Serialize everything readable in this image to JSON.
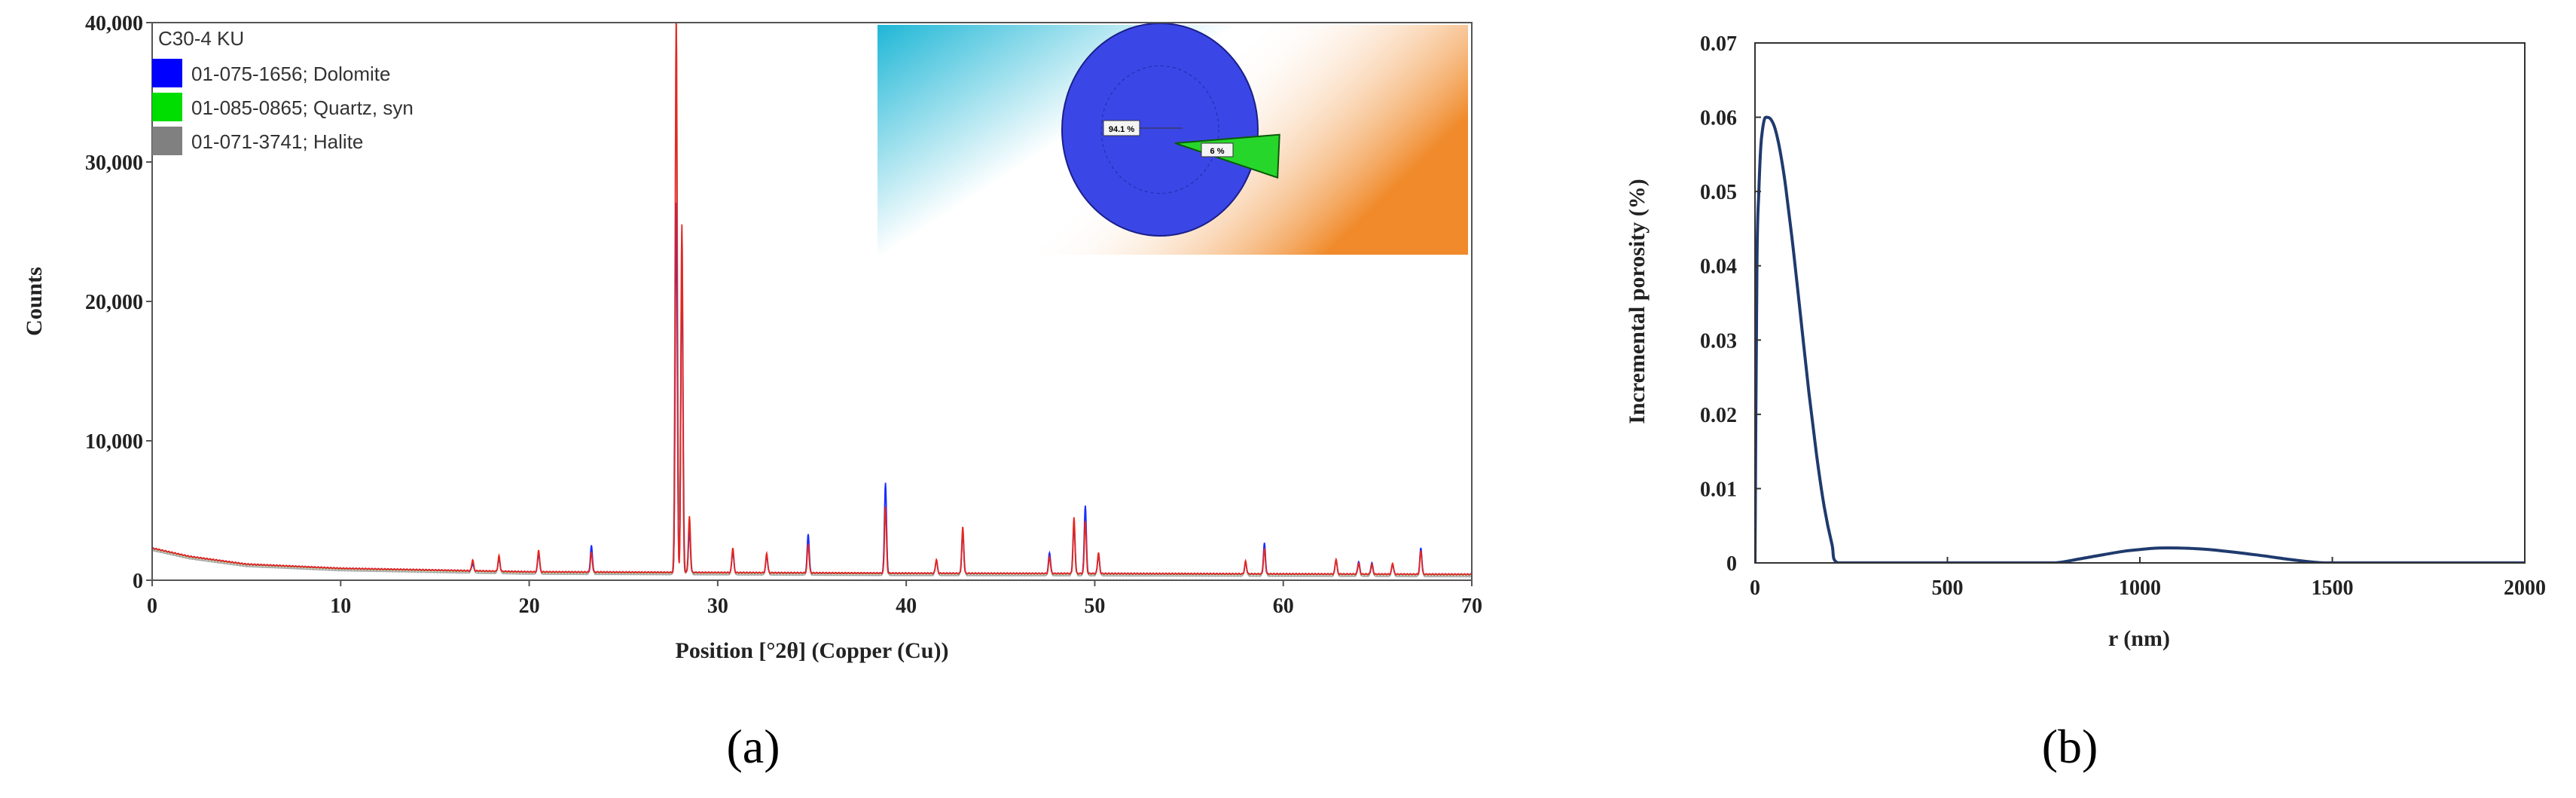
{
  "chart_data": [
    {
      "type": "line",
      "panel_label": "(a)",
      "title": "",
      "xlabel": "Position [°2θ] (Copper (Cu))",
      "ylabel": "Counts",
      "xlim": [
        0,
        70
      ],
      "ylim": [
        0,
        40000
      ],
      "xticks": [
        0,
        10,
        20,
        30,
        40,
        50,
        60,
        70
      ],
      "xtick_labels": [
        "0",
        "10",
        "20",
        "30",
        "40",
        "50",
        "60",
        "70"
      ],
      "yticks": [
        0,
        10000,
        20000,
        30000,
        40000
      ],
      "ytick_labels": [
        "0",
        "10,000",
        "20,000",
        "30,000",
        "40,000"
      ],
      "grid": false,
      "legend_title": "C30-4 KU",
      "legend": [
        {
          "name": "01-075-1656; Dolomite",
          "color": "#0000ff"
        },
        {
          "name": "01-085-0865; Quartz, syn",
          "color": "#00dd00"
        },
        {
          "name": "01-071-3741; Halite",
          "color": "#808080"
        }
      ],
      "background_level": [
        [
          0,
          2300
        ],
        [
          2,
          1700
        ],
        [
          5,
          1150
        ],
        [
          10,
          850
        ],
        [
          20,
          600
        ],
        [
          30,
          550
        ],
        [
          40,
          500
        ],
        [
          50,
          480
        ],
        [
          60,
          450
        ],
        [
          70,
          420
        ]
      ],
      "peaks": [
        {
          "pos": 17.0,
          "red": 800,
          "blue": 500
        },
        {
          "pos": 18.4,
          "red": 1100,
          "blue": 900
        },
        {
          "pos": 20.5,
          "red": 1600,
          "blue": 1300
        },
        {
          "pos": 23.3,
          "red": 1400,
          "blue": 1900
        },
        {
          "pos": 27.8,
          "red": 40000,
          "blue": 26500
        },
        {
          "pos": 28.1,
          "red": 25000,
          "blue": 22000
        },
        {
          "pos": 28.5,
          "red": 4000,
          "blue": 3000
        },
        {
          "pos": 30.8,
          "red": 1800,
          "blue": 1500
        },
        {
          "pos": 32.6,
          "red": 1400,
          "blue": 1200
        },
        {
          "pos": 34.8,
          "red": 2100,
          "blue": 2800
        },
        {
          "pos": 38.9,
          "red": 4800,
          "blue": 6500
        },
        {
          "pos": 41.6,
          "red": 1000,
          "blue": 900
        },
        {
          "pos": 43.0,
          "red": 3300,
          "blue": 2900
        },
        {
          "pos": 47.6,
          "red": 1200,
          "blue": 1500
        },
        {
          "pos": 48.9,
          "red": 4000,
          "blue": 3500
        },
        {
          "pos": 49.5,
          "red": 3800,
          "blue": 4900
        },
        {
          "pos": 50.2,
          "red": 1500,
          "blue": 1300
        },
        {
          "pos": 58.0,
          "red": 900,
          "blue": 800
        },
        {
          "pos": 59.0,
          "red": 1800,
          "blue": 2200
        },
        {
          "pos": 62.8,
          "red": 1100,
          "blue": 1000
        },
        {
          "pos": 64.0,
          "red": 800,
          "blue": 900
        },
        {
          "pos": 64.7,
          "red": 700,
          "blue": 800
        },
        {
          "pos": 65.8,
          "red": 800,
          "blue": 700
        },
        {
          "pos": 67.3,
          "red": 1700,
          "blue": 1900
        }
      ],
      "inset": {
        "type": "pie",
        "slices": [
          {
            "label": "94.1 %",
            "value": 94.1,
            "color": "#3b46e6"
          },
          {
            "label": "6 %",
            "value": 5.9,
            "color": "#27d62a"
          }
        ]
      }
    },
    {
      "type": "line",
      "panel_label": "(b)",
      "title": "",
      "xlabel": "r (nm)",
      "ylabel": "Incremental porosity (%)",
      "xlim": [
        0,
        2000
      ],
      "ylim": [
        0,
        0.07
      ],
      "xticks": [
        0,
        500,
        1000,
        1500,
        2000
      ],
      "xtick_labels": [
        "0",
        "500",
        "1000",
        "1500",
        "2000"
      ],
      "yticks": [
        0,
        0.01,
        0.02,
        0.03,
        0.04,
        0.05,
        0.06,
        0.07
      ],
      "ytick_labels": [
        "0",
        "0.01",
        "0.02",
        "0.03",
        "0.04",
        "0.05",
        "0.06",
        "0.07"
      ],
      "grid": false,
      "series": [
        {
          "name": "Incremental porosity",
          "color": "#1f3a6d",
          "x": [
            0,
            5,
            10,
            15,
            20,
            25,
            30,
            40,
            50,
            60,
            70,
            80,
            100,
            120,
            140,
            160,
            180,
            200,
            215,
            300,
            500,
            700,
            780,
            850,
            950,
            1000,
            1050,
            1100,
            1150,
            1200,
            1300,
            1400,
            1480,
            1600,
            1800,
            2000
          ],
          "y": [
            0,
            0.04,
            0.05,
            0.056,
            0.0585,
            0.0598,
            0.06,
            0.0598,
            0.0588,
            0.0568,
            0.054,
            0.0505,
            0.042,
            0.0325,
            0.023,
            0.0145,
            0.0075,
            0.0025,
            0,
            0,
            0,
            0,
            0,
            0.0006,
            0.0015,
            0.0018,
            0.002,
            0.002,
            0.0019,
            0.0017,
            0.0011,
            0.0004,
            0,
            0,
            0,
            0
          ]
        }
      ]
    }
  ]
}
